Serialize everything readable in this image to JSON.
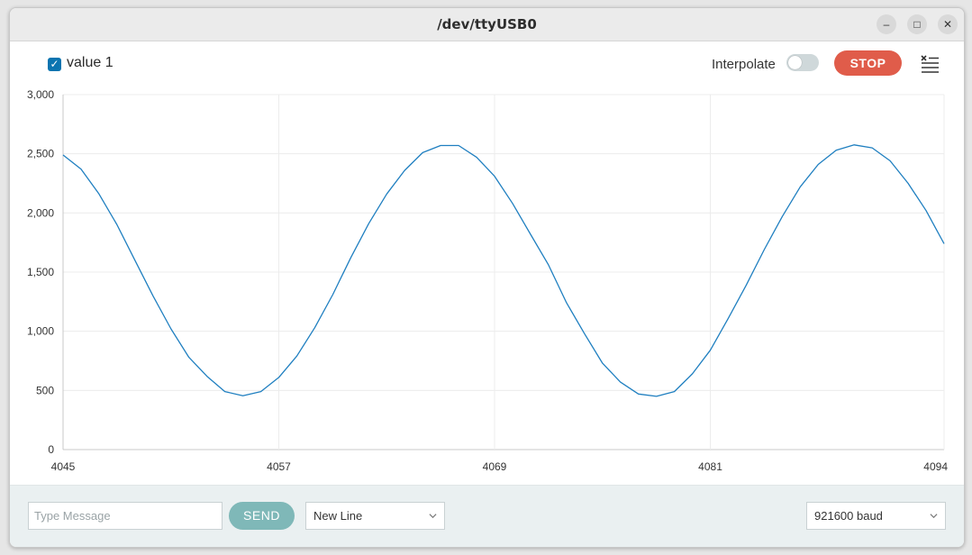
{
  "window": {
    "title": "/dev/ttyUSB0"
  },
  "toolbar": {
    "series_label": "value 1",
    "series_checked": true,
    "interpolate_label": "Interpolate",
    "interpolate_on": false,
    "stop_label": "STOP"
  },
  "colors": {
    "series": "#1f7fc0",
    "stop": "#e05c4a",
    "send": "#7fb8b8",
    "checkbox": "#0b74b0"
  },
  "chart_data": {
    "type": "line",
    "title": "",
    "xlabel": "",
    "ylabel": "",
    "xlim": [
      4045,
      4094
    ],
    "ylim": [
      0,
      3000
    ],
    "x_ticks": [
      "4045",
      "4057",
      "4069",
      "4081",
      "4094"
    ],
    "x_tick_values": [
      4045,
      4057,
      4069,
      4081,
      4094
    ],
    "y_ticks": [
      "0",
      "500",
      "1,000",
      "1,500",
      "2,000",
      "2,500",
      "3,000"
    ],
    "y_tick_values": [
      0,
      500,
      1000,
      1500,
      2000,
      2500,
      3000
    ],
    "grid": true,
    "series": [
      {
        "name": "value 1",
        "x": [
          4045,
          4046,
          4047,
          4048,
          4049,
          4050,
          4051,
          4052,
          4053,
          4054,
          4055,
          4056,
          4057,
          4058,
          4059,
          4060,
          4061,
          4062,
          4063,
          4064,
          4065,
          4066,
          4067,
          4068,
          4069,
          4070,
          4071,
          4072,
          4073,
          4074,
          4075,
          4076,
          4077,
          4078,
          4079,
          4080,
          4081,
          4082,
          4083,
          4084,
          4085,
          4086,
          4087,
          4088,
          4089,
          4090,
          4091,
          4092,
          4093,
          4094
        ],
        "values": [
          2490,
          2370,
          2160,
          1900,
          1600,
          1300,
          1020,
          780,
          620,
          490,
          455,
          490,
          610,
          790,
          1030,
          1310,
          1620,
          1910,
          2160,
          2360,
          2510,
          2570,
          2570,
          2470,
          2310,
          2080,
          1820,
          1560,
          1240,
          980,
          730,
          570,
          470,
          450,
          490,
          640,
          840,
          1110,
          1390,
          1690,
          1970,
          2220,
          2410,
          2530,
          2575,
          2550,
          2440,
          2250,
          2020,
          1740
        ]
      }
    ]
  },
  "bottom": {
    "message_placeholder": "Type Message",
    "message_value": "",
    "send_label": "SEND",
    "line_ending": "New Line",
    "baud": "921600 baud"
  }
}
